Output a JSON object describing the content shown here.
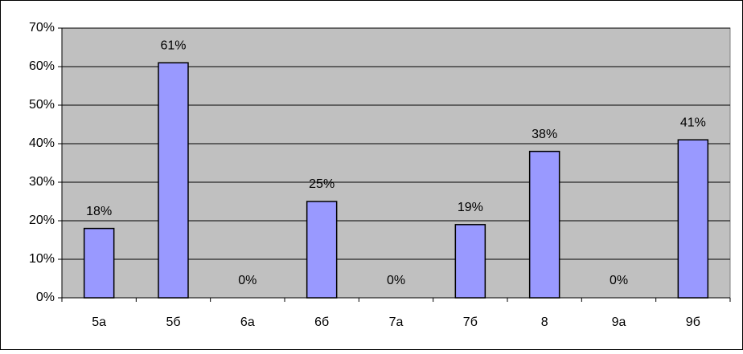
{
  "chart_data": {
    "type": "bar",
    "categories": [
      "5а",
      "5б",
      "6а",
      "6б",
      "7а",
      "7б",
      "8",
      "9а",
      "9б"
    ],
    "values": [
      18,
      61,
      0,
      25,
      0,
      19,
      38,
      0,
      41
    ],
    "value_labels": [
      "18%",
      "61%",
      "0%",
      "25%",
      "0%",
      "19%",
      "38%",
      "0%",
      "41%"
    ],
    "color": "#9999ff",
    "ylim": [
      0,
      70
    ],
    "yticks": [
      {
        "value": 0,
        "label": "0%"
      },
      {
        "value": 10,
        "label": "10%"
      },
      {
        "value": 20,
        "label": "20%"
      },
      {
        "value": 30,
        "label": "30%"
      },
      {
        "value": 40,
        "label": "40%"
      },
      {
        "value": 50,
        "label": "50%"
      },
      {
        "value": 60,
        "label": "60%"
      },
      {
        "value": 70,
        "label": "70%"
      }
    ],
    "grid": true
  }
}
